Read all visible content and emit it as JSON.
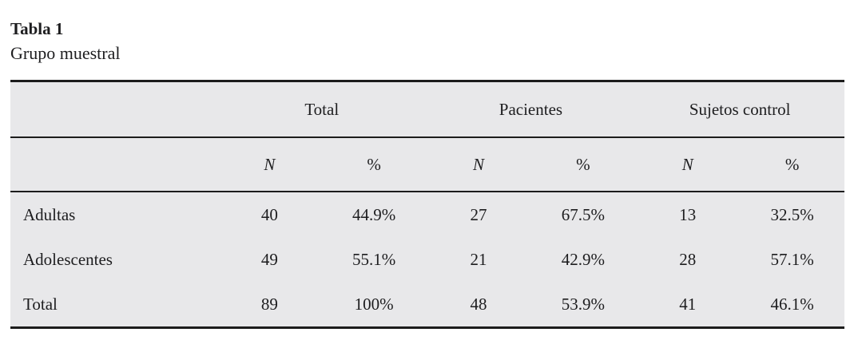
{
  "title": "Tabla 1",
  "subtitle": "Grupo muestral",
  "colors": {
    "table_background": "#e8e8ea",
    "rule": "#1c1c1c",
    "text": "#1d1d1f",
    "page_background": "#ffffff"
  },
  "table": {
    "group_headers": [
      "Total",
      "Pacientes",
      "Sujetos control"
    ],
    "sub_headers": [
      "N",
      "%"
    ],
    "rows": [
      {
        "label": "Adultas",
        "values": [
          "40",
          "44.9%",
          "27",
          "67.5%",
          "13",
          "32.5%"
        ]
      },
      {
        "label": "Adolescentes",
        "values": [
          "49",
          "55.1%",
          "21",
          "42.9%",
          "28",
          "57.1%"
        ]
      },
      {
        "label": "Total",
        "values": [
          "89",
          "100%",
          "48",
          "53.9%",
          "41",
          "46.1%"
        ]
      }
    ]
  }
}
